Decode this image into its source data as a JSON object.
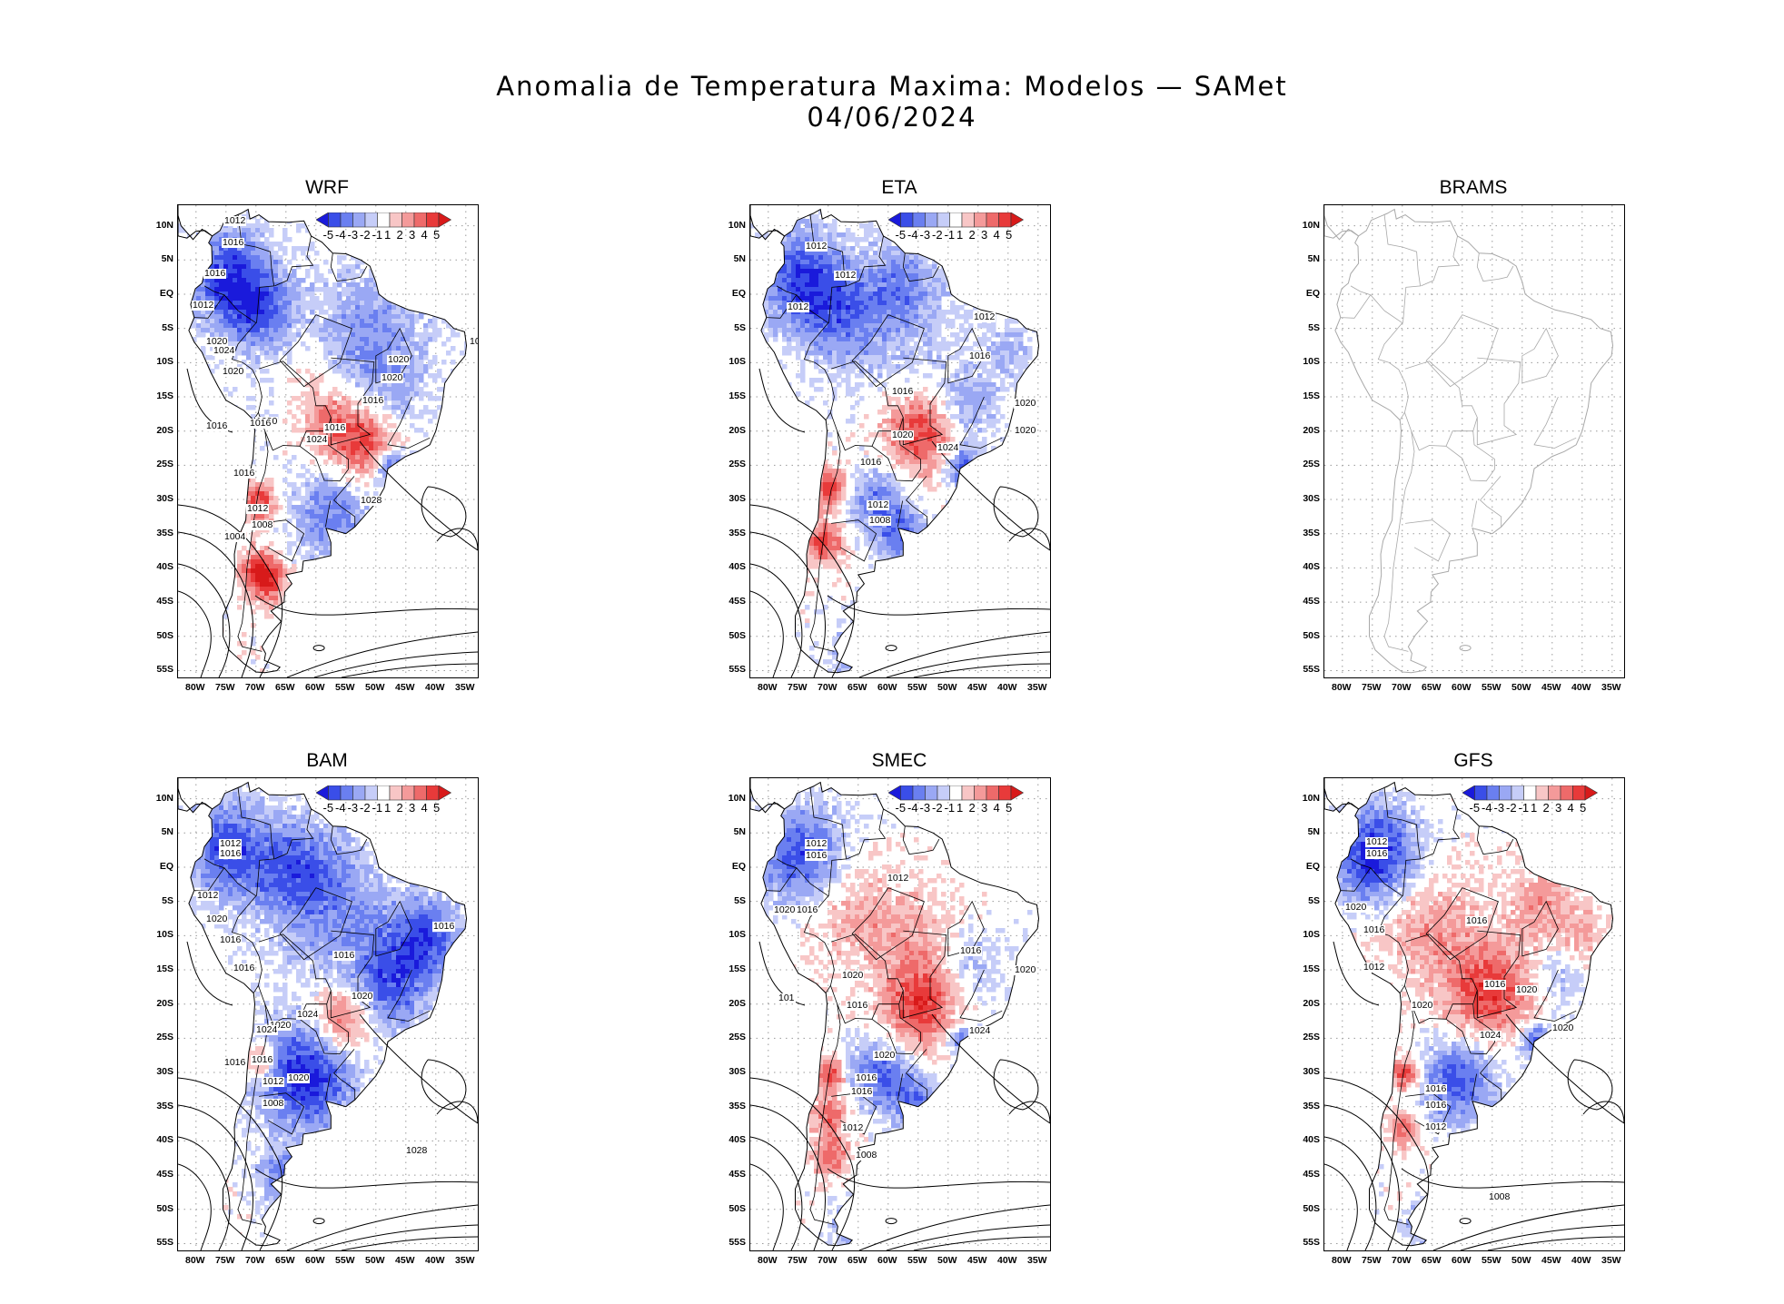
{
  "title_line1": "Anomalia de Temperatura Maxima: Modelos — SAMet",
  "title_line2": "04/06/2024",
  "lat_labels": [
    "10N",
    "5N",
    "EQ",
    "5S",
    "10S",
    "15S",
    "20S",
    "25S",
    "30S",
    "35S",
    "40S",
    "45S",
    "50S",
    "55S"
  ],
  "lon_labels": [
    "80W",
    "75W",
    "70W",
    "65W",
    "60W",
    "55W",
    "50W",
    "45W",
    "40W",
    "35W"
  ],
  "colorbar": {
    "tick_labels": [
      "-5",
      "-4",
      "-3",
      "-2",
      "-1",
      "1",
      "2",
      "3",
      "4",
      "5"
    ],
    "colors": [
      "#1a1adb",
      "#3a4ee8",
      "#6a7ff0",
      "#9aa8f4",
      "#c6cdf8",
      "#ffffff",
      "#f8c6c6",
      "#f49a9a",
      "#ee6a6a",
      "#e83a3a",
      "#d81a1a"
    ]
  },
  "colors": {
    "land_outline": "#000000",
    "brams_outline": "#a8a8a8",
    "grid": "#9a9a9a"
  },
  "panels": [
    {
      "name": "WRF",
      "has_data": true,
      "isobars": [
        "1012",
        "1016",
        "1016",
        "1012",
        "1020",
        "1024",
        "1020",
        "1020",
        "1016",
        "1020",
        "1016",
        "1016",
        "1020",
        "1016",
        "1024",
        "1016",
        "1028",
        "1012",
        "1008",
        "1004",
        "101"
      ]
    },
    {
      "name": "ETA",
      "has_data": true,
      "isobars": [
        "1012",
        "1012",
        "1012",
        "1012",
        "1016",
        "1016",
        "1020",
        "1020",
        "1020",
        "1024",
        "1016",
        "1012",
        "1008"
      ]
    },
    {
      "name": "BRAMS",
      "has_data": false,
      "isobars": []
    },
    {
      "name": "BAM",
      "has_data": true,
      "isobars": [
        "1012",
        "1016",
        "1012",
        "1020",
        "1016",
        "1016",
        "1016",
        "1016",
        "1020",
        "1020",
        "1024",
        "1020",
        "1024",
        "1016",
        "1016",
        "1012",
        "1008",
        "1028"
      ]
    },
    {
      "name": "SMEC",
      "has_data": true,
      "isobars": [
        "1012",
        "1016",
        "1012",
        "1020",
        "1016",
        "1016",
        "1020",
        "101",
        "1020",
        "1016",
        "1024",
        "1020",
        "1016",
        "1016",
        "1012",
        "1008",
        "10"
      ]
    },
    {
      "name": "GFS",
      "has_data": true,
      "isobars": [
        "1012",
        "1016",
        "1020",
        "1016",
        "1012",
        "1016",
        "1016",
        "1020",
        "1020",
        "1024",
        "1020",
        "1016",
        "1016",
        "1012",
        "1008"
      ]
    }
  ]
}
